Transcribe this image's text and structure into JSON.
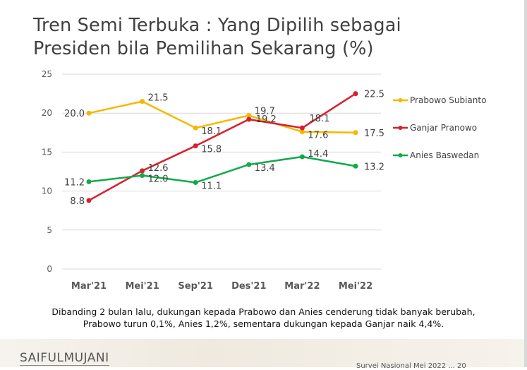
{
  "header": {
    "title_line1": "Tren Semi Terbuka : Yang Dipilih sebagai",
    "title_line2": "Presiden bila Pemilihan Sekarang (%)"
  },
  "chart_data": {
    "type": "line",
    "title": "Tren Semi Terbuka : Yang Dipilih sebagai Presiden bila Pemilihan Sekarang (%)",
    "xlabel": "",
    "ylabel": "",
    "ylim": [
      0,
      25
    ],
    "yticks": [
      "0",
      "5",
      "10",
      "15",
      "20",
      "25"
    ],
    "grid": true,
    "legend_position": "right",
    "categories": [
      "Mar'21",
      "Mei'21",
      "Sep'21",
      "Des'21",
      "Mar'22",
      "Mei'22"
    ],
    "series": [
      {
        "name": "Prabowo Subianto",
        "color": "#f5b800",
        "values": [
          20.0,
          21.5,
          18.1,
          19.7,
          17.6,
          17.5
        ],
        "labels": [
          "20.0",
          "21.5",
          "18.1",
          "19.7",
          "17.6",
          "17.5"
        ]
      },
      {
        "name": "Ganjar Pranowo",
        "color": "#d7202e",
        "values": [
          8.8,
          12.6,
          15.8,
          19.2,
          18.1,
          22.5
        ],
        "labels": [
          "8.8",
          "12.6",
          "15.8",
          "19.2",
          "18.1",
          "22.5"
        ]
      },
      {
        "name": "Anies Baswedan",
        "color": "#12a94a",
        "values": [
          11.2,
          12.0,
          11.1,
          13.4,
          14.4,
          13.2
        ],
        "labels": [
          "11.2",
          "12.0",
          "11.1",
          "13.4",
          "14.4",
          "13.2"
        ]
      }
    ]
  },
  "caption": {
    "line1": "Dibanding 2 bulan lalu, dukungan kepada Prabowo dan Anies cenderung tidak banyak berubah,",
    "line2": "Prabowo turun 0,1%, Anies 1,2%, sementara dukungan kepada Ganjar naik 4,4%."
  },
  "footer": {
    "logo": "SAIFULMUJANI",
    "source": "Survei Nasional Mei 2022 ... 20"
  }
}
